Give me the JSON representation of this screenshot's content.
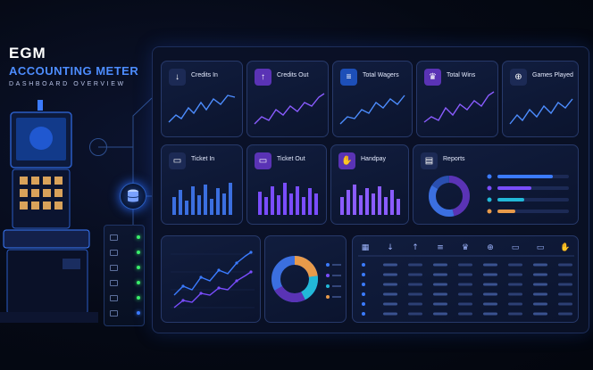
{
  "brand": {
    "line1": "EGM",
    "line2": "ACCOUNTING METER",
    "line3": "DASHBOARD OVERVIEW"
  },
  "colors": {
    "accent_blue": "#3b7bff",
    "accent_purple": "#7a4dff",
    "accent_cyan": "#22b8d8",
    "accent_orange": "#e89a4a",
    "status_green": "#3bf06a"
  },
  "top_cards": [
    {
      "label": "Credits In",
      "icon": "arrow-down-icon",
      "glyph": "↓"
    },
    {
      "label": "Credits Out",
      "icon": "arrow-up-icon",
      "glyph": "↑"
    },
    {
      "label": "Total Wagers",
      "icon": "coins-icon",
      "glyph": "≡"
    },
    {
      "label": "Total Wins",
      "icon": "trophy-icon",
      "glyph": "♛"
    },
    {
      "label": "Games Played",
      "icon": "gamepad-icon",
      "glyph": "⊕"
    }
  ],
  "mid_cards": [
    {
      "label": "Ticket In",
      "icon": "ticket-icon",
      "glyph": "▭"
    },
    {
      "label": "Ticket Out",
      "icon": "ticket-icon",
      "glyph": "▭"
    },
    {
      "label": "Handpay",
      "icon": "hand-money-icon",
      "glyph": "✋"
    }
  ],
  "reports": {
    "label": "Reports",
    "icon": "document-icon",
    "glyph": "▤"
  },
  "table_header_icons": [
    "calendar-icon",
    "arrow-down-icon",
    "arrow-up-icon",
    "coins-icon",
    "trophy-icon",
    "gamepad-icon",
    "ticket-icon",
    "ticket-icon",
    "hand-money-icon"
  ],
  "machine": {
    "icon": "slot-machine-icon"
  },
  "hub": {
    "icon": "database-icon"
  }
}
